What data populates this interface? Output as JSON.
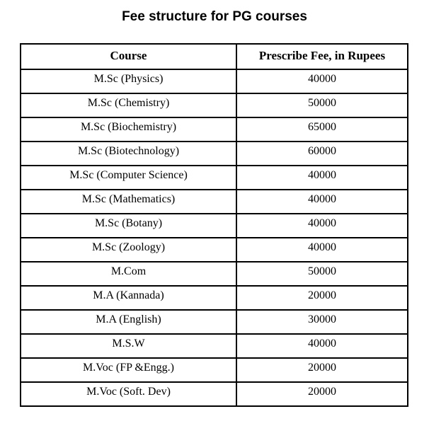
{
  "title": "Fee structure for PG courses",
  "table": {
    "columns": [
      "Course",
      "Prescribe Fee, in Rupees"
    ],
    "rows": [
      {
        "course": "M.Sc (Physics)",
        "fee": "40000"
      },
      {
        "course": "M.Sc (Chemistry)",
        "fee": "50000"
      },
      {
        "course": "M.Sc (Biochemistry)",
        "fee": "65000"
      },
      {
        "course": "M.Sc (Biotechnology)",
        "fee": "60000"
      },
      {
        "course": "M.Sc (Computer Science)",
        "fee": "40000"
      },
      {
        "course": "M.Sc (Mathematics)",
        "fee": "40000"
      },
      {
        "course": "M.Sc (Botany)",
        "fee": "40000"
      },
      {
        "course": "M.Sc (Zoology)",
        "fee": "40000"
      },
      {
        "course": "M.Com",
        "fee": "50000"
      },
      {
        "course": "M.A (Kannada)",
        "fee": "20000"
      },
      {
        "course": "M.A (English)",
        "fee": "30000"
      },
      {
        "course": "M.S.W",
        "fee": "40000"
      },
      {
        "course": "M.Voc (FP &Engg.)",
        "fee": "20000"
      },
      {
        "course": "M.Voc (Soft. Dev)",
        "fee": "20000"
      }
    ]
  },
  "colors": {
    "text": "#000000",
    "border": "#000000",
    "background": "#ffffff"
  }
}
